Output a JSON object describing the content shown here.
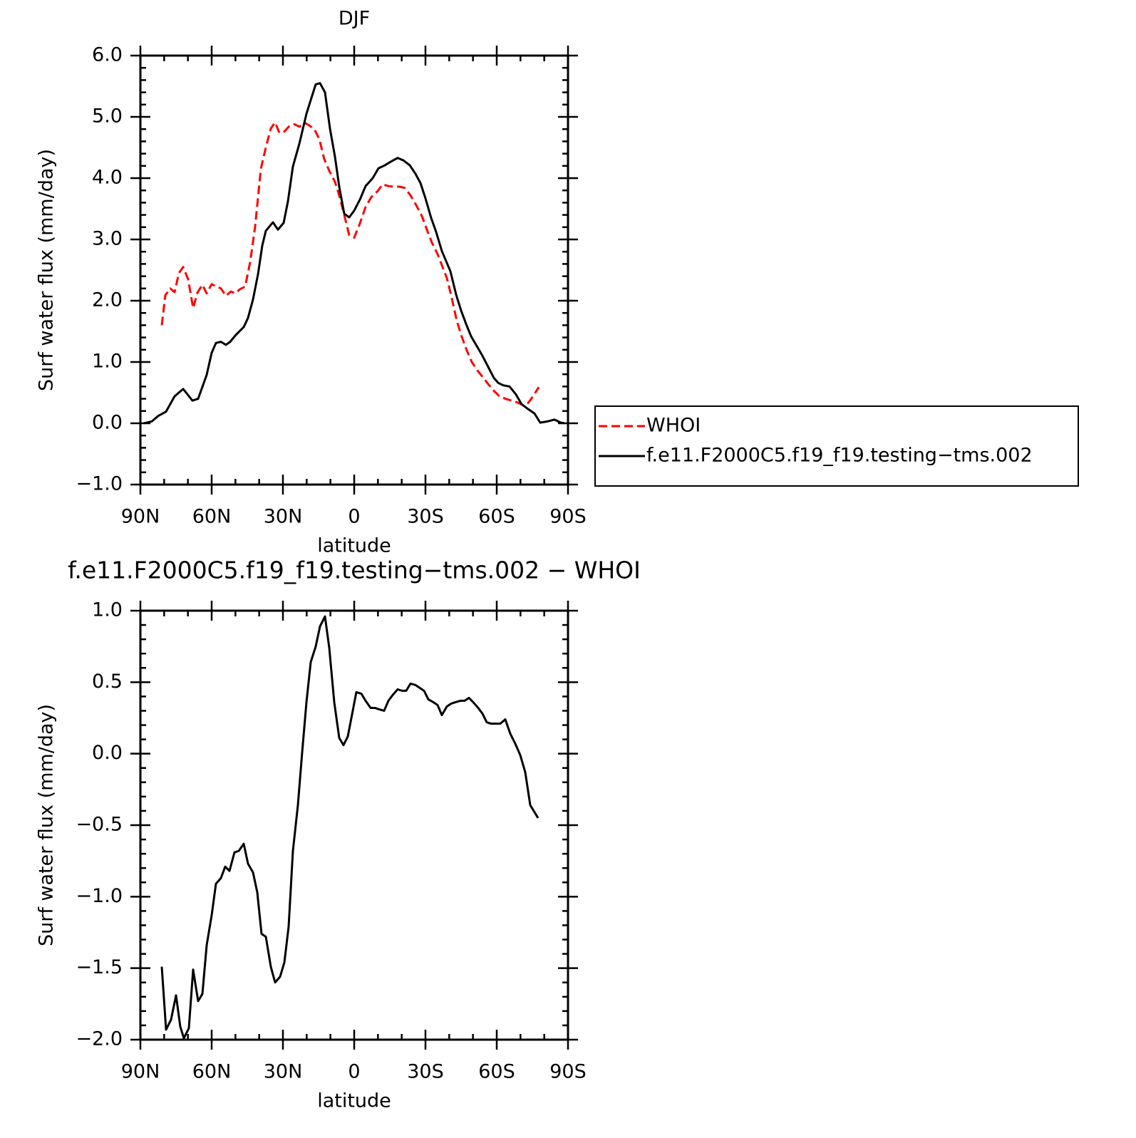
{
  "chart_data": [
    {
      "type": "line",
      "title": "DJF",
      "xlabel": "latitude",
      "ylabel": "Surf water flux (mm/day)",
      "xlim": [
        90,
        -90
      ],
      "ylim": [
        -1,
        6
      ],
      "xticks": [
        {
          "value": 90,
          "label": "90N"
        },
        {
          "value": 60,
          "label": "60N"
        },
        {
          "value": 30,
          "label": "30N"
        },
        0,
        {
          "value": -30,
          "label": "30S"
        },
        {
          "value": -60,
          "label": "60S"
        },
        {
          "value": -90,
          "label": "90S"
        }
      ],
      "xminorticks": [
        80,
        70,
        50,
        40,
        20,
        10,
        -10,
        -20,
        -40,
        -50,
        -70,
        -80
      ],
      "yticks": [
        {
          "value": 6,
          "label": "6.0"
        },
        {
          "value": 5,
          "label": "5.0"
        },
        {
          "value": 4,
          "label": "4.0"
        },
        {
          "value": 3,
          "label": "3.0"
        },
        {
          "value": 2,
          "label": "2.0"
        },
        {
          "value": 1,
          "label": "1.0"
        },
        {
          "value": 0,
          "label": "0.0"
        },
        {
          "value": -1,
          "label": "−1.0"
        }
      ],
      "yminorticks": [
        5.8,
        5.6,
        5.4,
        5.2,
        4.8,
        4.6,
        4.4,
        4.2,
        3.8,
        3.6,
        3.4,
        3.2,
        2.8,
        2.6,
        2.4,
        2.2,
        1.8,
        1.6,
        1.4,
        1.2,
        0.8,
        0.6,
        0.4,
        0.2,
        -0.2,
        -0.4,
        -0.6,
        -0.8
      ],
      "legend": "right",
      "series": [
        {
          "name": "WHOI",
          "color": "#ff0000",
          "line_style": "dashed",
          "x": [
            81,
            79.5,
            77.4,
            75.6,
            73.8,
            72,
            69.9,
            67.8,
            66,
            63.9,
            62.1,
            60,
            57.9,
            56.1,
            54,
            51.9,
            50.1,
            48,
            45.9,
            43.8,
            41.7,
            39.3,
            37.2,
            35.1,
            33.3,
            31.5,
            29.4,
            27.3,
            25.2,
            23.1,
            20.7,
            18.9,
            16.8,
            14.7,
            12.6,
            10.5,
            8.1,
            6.3,
            4.2,
            2.1,
            0,
            -2.4,
            -4.8,
            -7.2,
            -9.9,
            -12,
            -14.4,
            -16.8,
            -19.2,
            -21.3,
            -23.7,
            -26.1,
            -28.5,
            -30.6,
            -32.7,
            -35.1,
            -36.9,
            -39,
            -40.8,
            -43.2,
            -45.3,
            -47.4,
            -49.5,
            -51.9,
            -54,
            -56.4,
            -58.8,
            -60.9,
            -63.6,
            -66.3,
            -68.7,
            -70.8,
            -73.2,
            -75.3,
            -77.7
          ],
          "values": [
            1.6,
            2.09,
            2.2,
            2.14,
            2.45,
            2.55,
            2.35,
            1.88,
            2.13,
            2.26,
            2.12,
            2.27,
            2.23,
            2.2,
            2.08,
            2.15,
            2.12,
            2.19,
            2.23,
            2.63,
            3.21,
            4.15,
            4.5,
            4.81,
            4.91,
            4.74,
            4.76,
            4.85,
            4.88,
            4.84,
            4.9,
            4.86,
            4.8,
            4.64,
            4.31,
            4.12,
            3.94,
            3.72,
            3.4,
            3.07,
            3.03,
            3.26,
            3.53,
            3.69,
            3.79,
            3.9,
            3.87,
            3.86,
            3.86,
            3.84,
            3.72,
            3.56,
            3.38,
            3.16,
            2.95,
            2.76,
            2.58,
            2.37,
            2.09,
            1.67,
            1.41,
            1.19,
            1.0,
            0.86,
            0.76,
            0.64,
            0.53,
            0.45,
            0.4,
            0.37,
            0.34,
            0.3,
            0.33,
            0.44,
            0.59
          ]
        },
        {
          "name": "f.e11.F2000C5.f19_f19.testing−tms.002",
          "color": "#000000",
          "line_style": "solid",
          "x": [
            88.5,
            85.2,
            82.5,
            79.2,
            75.6,
            72,
            68.1,
            65.7,
            62.1,
            60,
            58.2,
            56.1,
            54,
            52.2,
            50.1,
            46.5,
            44.7,
            42.6,
            40.5,
            38.7,
            37.2,
            34.2,
            32.1,
            29.7,
            27.9,
            25.8,
            23.1,
            20.1,
            18,
            16.2,
            14.4,
            12.3,
            10.2,
            8.1,
            6.3,
            4.2,
            2.1,
            0,
            -2.4,
            -4.8,
            -7.8,
            -10.2,
            -12.9,
            -15.9,
            -18.3,
            -20.7,
            -23.4,
            -25.8,
            -27.9,
            -30,
            -32.4,
            -34.5,
            -36.9,
            -40.5,
            -42.9,
            -45,
            -47.1,
            -49.2,
            -51.6,
            -54,
            -56.4,
            -58.8,
            -60.6,
            -62.7,
            -65.4,
            -68.1,
            -70.5,
            -72.9,
            -75.9,
            -78.3,
            -81.3,
            -84.3,
            -87,
            -88.5
          ],
          "values": [
            0.0,
            0.03,
            0.12,
            0.19,
            0.44,
            0.56,
            0.37,
            0.4,
            0.79,
            1.15,
            1.31,
            1.33,
            1.28,
            1.33,
            1.43,
            1.57,
            1.72,
            2.02,
            2.43,
            2.9,
            3.14,
            3.28,
            3.16,
            3.27,
            3.62,
            4.19,
            4.56,
            5.05,
            5.31,
            5.53,
            5.55,
            5.4,
            4.81,
            4.35,
            3.86,
            3.42,
            3.36,
            3.47,
            3.65,
            3.87,
            4.0,
            4.16,
            4.21,
            4.28,
            4.33,
            4.29,
            4.21,
            4.07,
            3.92,
            3.67,
            3.35,
            3.12,
            2.81,
            2.48,
            2.1,
            1.84,
            1.62,
            1.42,
            1.26,
            1.1,
            0.92,
            0.74,
            0.66,
            0.62,
            0.6,
            0.47,
            0.31,
            0.24,
            0.16,
            0.01,
            0.03,
            0.06,
            0.01,
            0.0
          ]
        }
      ]
    },
    {
      "type": "line",
      "title": "f.e11.F2000C5.f19_f19.testing−tms.002 − WHOI",
      "xlabel": "latitude",
      "ylabel": "Surf water flux (mm/day)",
      "xlim": [
        90,
        -90
      ],
      "ylim": [
        -2,
        1
      ],
      "xticks": [
        {
          "value": 90,
          "label": "90N"
        },
        {
          "value": 60,
          "label": "60N"
        },
        {
          "value": 30,
          "label": "30N"
        },
        0,
        {
          "value": -30,
          "label": "30S"
        },
        {
          "value": -60,
          "label": "60S"
        },
        {
          "value": -90,
          "label": "90S"
        }
      ],
      "xminorticks": [
        80,
        70,
        50,
        40,
        20,
        10,
        -10,
        -20,
        -40,
        -50,
        -70,
        -80
      ],
      "yticks": [
        {
          "value": 1,
          "label": "1.0"
        },
        {
          "value": 0.5,
          "label": "0.5"
        },
        {
          "value": 0,
          "label": "0.0"
        },
        {
          "value": -0.5,
          "label": "−0.5"
        },
        {
          "value": -1,
          "label": "−1.0"
        },
        {
          "value": -1.5,
          "label": "−1.5"
        },
        {
          "value": -2,
          "label": "−2.0"
        }
      ],
      "yminorticks": [
        0.9,
        0.8,
        0.7,
        0.6,
        0.4,
        0.3,
        0.2,
        0.1,
        -0.1,
        -0.2,
        -0.3,
        -0.4,
        -0.6,
        -0.7,
        -0.8,
        -0.9,
        -1.1,
        -1.2,
        -1.3,
        -1.4,
        -1.6,
        -1.7,
        -1.8,
        -1.9
      ],
      "color": "#000000",
      "line_style": "solid",
      "x": [
        81,
        79.2,
        77.1,
        75,
        73.2,
        71.7,
        69.6,
        67.8,
        65.7,
        63.9,
        62.1,
        60,
        58.2,
        56.1,
        54.3,
        52.5,
        50.4,
        48.6,
        46.5,
        44.7,
        42.6,
        40.8,
        39,
        37.2,
        35.1,
        33.3,
        31.2,
        29.4,
        27.6,
        25.8,
        23.7,
        21.9,
        20.1,
        18.3,
        16.2,
        14.4,
        12.3,
        10.5,
        8.4,
        6.3,
        4.5,
        2.7,
        0.6,
        -0.9,
        -3,
        -4.8,
        -6.9,
        -8.7,
        -10.5,
        -12.6,
        -14.4,
        -16.2,
        -18.3,
        -20.1,
        -21.9,
        -23.7,
        -25.8,
        -27.6,
        -29.4,
        -31.2,
        -33.3,
        -35.1,
        -36.9,
        -39,
        -40.8,
        -42.6,
        -44.7,
        -46.5,
        -48.3,
        -50.1,
        -52.2,
        -54,
        -55.8,
        -57.6,
        -59.7,
        -61.5,
        -63.6,
        -65.7,
        -67.8,
        -69.9,
        -72,
        -74.1,
        -77.4
      ],
      "values": [
        -1.49,
        -1.93,
        -1.86,
        -1.69,
        -1.91,
        -1.99,
        -1.92,
        -1.51,
        -1.73,
        -1.68,
        -1.34,
        -1.13,
        -0.91,
        -0.87,
        -0.79,
        -0.82,
        -0.69,
        -0.68,
        -0.63,
        -0.77,
        -0.83,
        -0.97,
        -1.26,
        -1.28,
        -1.49,
        -1.6,
        -1.56,
        -1.46,
        -1.21,
        -0.68,
        -0.36,
        0.01,
        0.36,
        0.64,
        0.75,
        0.89,
        0.96,
        0.74,
        0.36,
        0.11,
        0.06,
        0.12,
        0.3,
        0.43,
        0.42,
        0.37,
        0.32,
        0.32,
        0.31,
        0.3,
        0.37,
        0.41,
        0.45,
        0.44,
        0.44,
        0.49,
        0.48,
        0.46,
        0.44,
        0.38,
        0.36,
        0.34,
        0.27,
        0.33,
        0.35,
        0.36,
        0.37,
        0.37,
        0.39,
        0.36,
        0.32,
        0.28,
        0.22,
        0.21,
        0.21,
        0.21,
        0.24,
        0.14,
        0.07,
        -0.01,
        -0.13,
        -0.36,
        -0.45
      ]
    }
  ]
}
